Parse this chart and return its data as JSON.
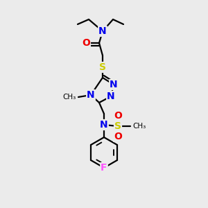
{
  "background_color": "#ebebeb",
  "bond_color": "#000000",
  "bond_width": 1.6,
  "figsize": [
    3.0,
    3.0
  ],
  "dpi": 100,
  "atom_colors": {
    "N": "#0000ee",
    "O": "#ee0000",
    "S": "#cccc00",
    "F": "#ff55ff"
  }
}
